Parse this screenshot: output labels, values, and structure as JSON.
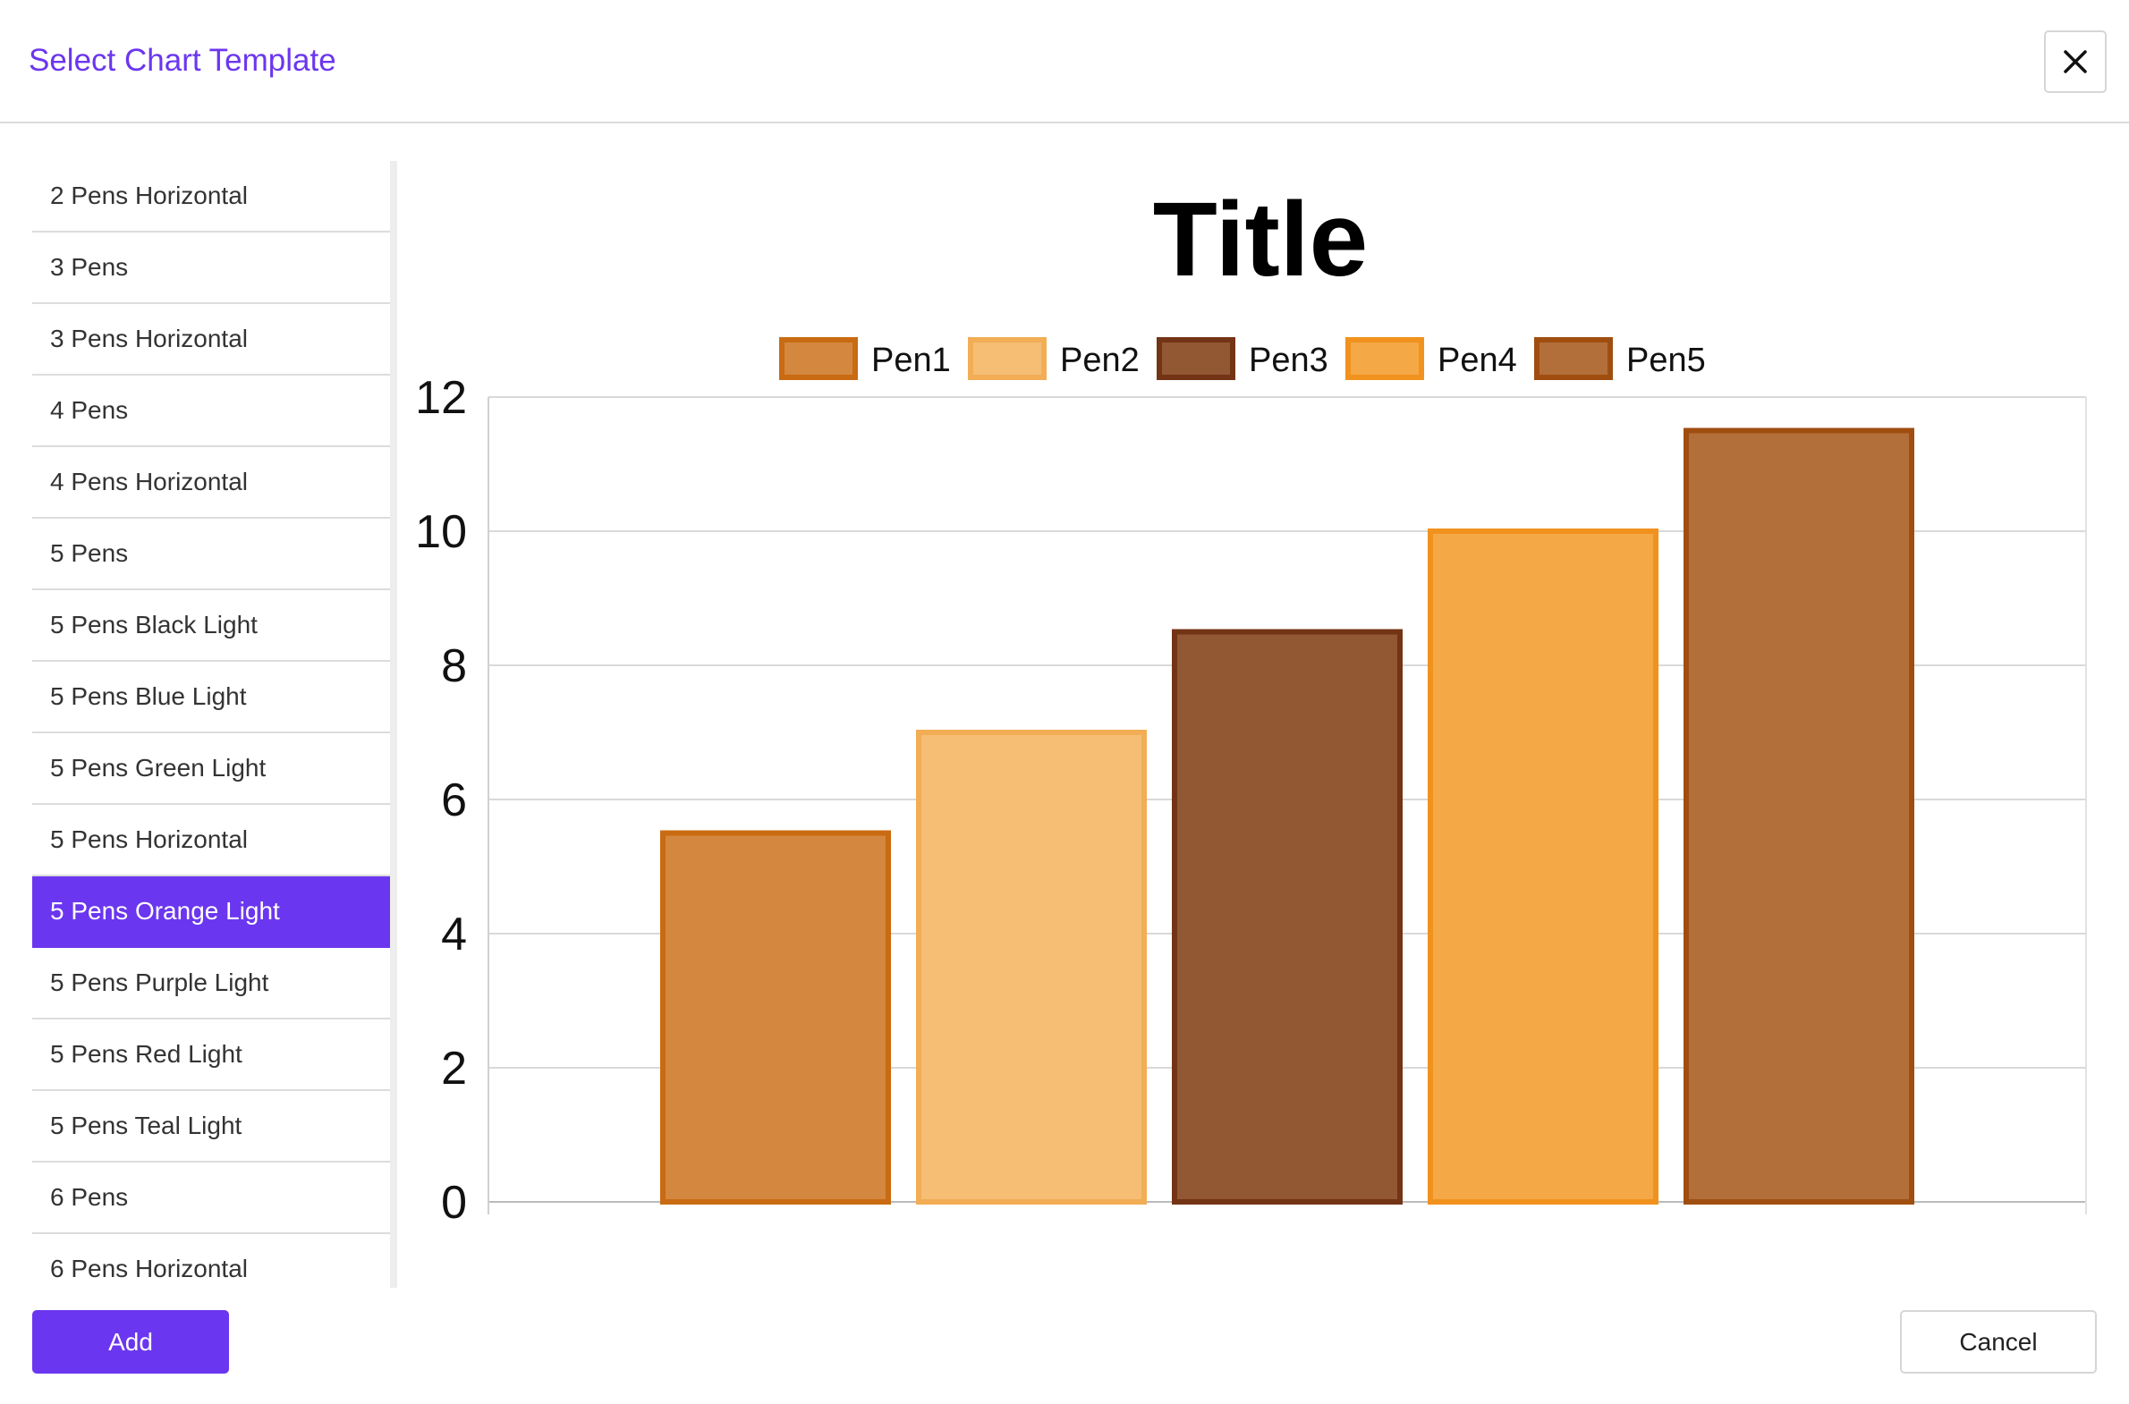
{
  "dialog": {
    "title": "Select Chart Template",
    "close_icon": "close-icon"
  },
  "templates": {
    "selected_index": 10,
    "items": [
      "2 Pens Horizontal",
      "3 Pens",
      "3 Pens Horizontal",
      "4 Pens",
      "4 Pens Horizontal",
      "5 Pens",
      "5 Pens Black Light",
      "5 Pens Blue Light",
      "5 Pens Green Light",
      "5 Pens Horizontal",
      "5 Pens Orange Light",
      "5 Pens Purple Light",
      "5 Pens Red Light",
      "5 Pens Teal Light",
      "6 Pens",
      "6 Pens Horizontal"
    ]
  },
  "chart_data": {
    "type": "bar",
    "title": "Title",
    "xlabel": "",
    "ylabel": "",
    "ylim": [
      0,
      12
    ],
    "yticks": [
      "0",
      "2",
      "4",
      "6",
      "8",
      "10",
      "12"
    ],
    "grid": true,
    "legend_position": "top",
    "series": [
      {
        "name": "Pen1",
        "values": [
          5.5
        ],
        "fill": "#d4873e",
        "stroke": "#c96b12"
      },
      {
        "name": "Pen2",
        "values": [
          7
        ],
        "fill": "#f6be75",
        "stroke": "#f2ad55"
      },
      {
        "name": "Pen3",
        "values": [
          8.5
        ],
        "fill": "#925733",
        "stroke": "#733416"
      },
      {
        "name": "Pen4",
        "values": [
          10
        ],
        "fill": "#f5a846",
        "stroke": "#f0921d"
      },
      {
        "name": "Pen5",
        "values": [
          11.5
        ],
        "fill": "#b36f3a",
        "stroke": "#a04e10"
      }
    ]
  },
  "footer": {
    "add_label": "Add",
    "cancel_label": "Cancel"
  }
}
